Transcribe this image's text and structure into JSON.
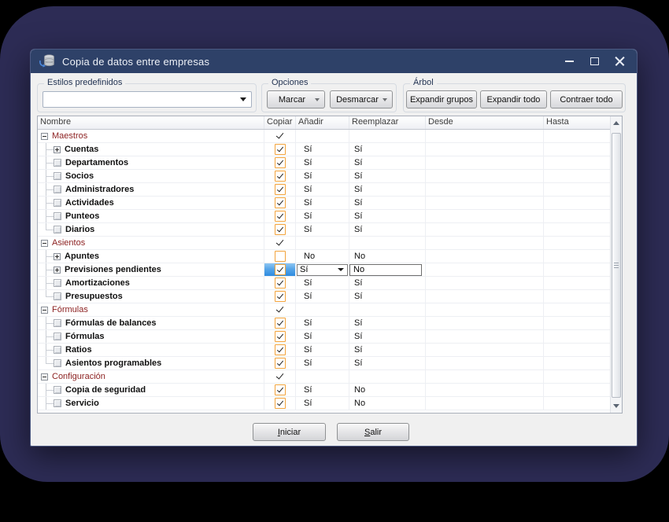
{
  "window": {
    "title": "Copia de datos entre empresas"
  },
  "toolbar": {
    "styles": {
      "label": "Estilos predefinidos",
      "combo_value": ""
    },
    "options": {
      "label": "Opciones",
      "marcar": "Marcar",
      "desmarcar": "Desmarcar"
    },
    "arbol": {
      "label": "Árbol",
      "expand_groups": "Expandir grupos",
      "expand_all": "Expandir todo",
      "collapse_all": "Contraer todo"
    }
  },
  "table": {
    "columns": [
      "Nombre",
      "Copiar",
      "Añadir",
      "Reemplazar",
      "Desde",
      "Hasta"
    ],
    "rows": [
      {
        "type": "group",
        "name": "Maestros",
        "copiar": "check"
      },
      {
        "type": "item",
        "name": "Cuentas",
        "expander": "plus",
        "copiar": "checked",
        "anadir": "Sí",
        "reemplazar": "Sí"
      },
      {
        "type": "item",
        "name": "Departamentos",
        "expander": "leaf",
        "copiar": "checked",
        "anadir": "Sí",
        "reemplazar": "Sí"
      },
      {
        "type": "item",
        "name": "Socios",
        "expander": "leaf",
        "copiar": "checked",
        "anadir": "Sí",
        "reemplazar": "Sí"
      },
      {
        "type": "item",
        "name": "Administradores",
        "expander": "leaf",
        "copiar": "checked",
        "anadir": "Sí",
        "reemplazar": "Sí"
      },
      {
        "type": "item",
        "name": "Actividades",
        "expander": "leaf",
        "copiar": "checked",
        "anadir": "Sí",
        "reemplazar": "Sí"
      },
      {
        "type": "item",
        "name": "Punteos",
        "expander": "leaf",
        "copiar": "checked",
        "anadir": "Sí",
        "reemplazar": "Sí"
      },
      {
        "type": "item",
        "name": "Diarios",
        "expander": "leaf",
        "last": true,
        "copiar": "checked",
        "anadir": "Sí",
        "reemplazar": "Sí"
      },
      {
        "type": "group",
        "name": "Asientos",
        "copiar": "check"
      },
      {
        "type": "item",
        "name": "Apuntes",
        "expander": "plus",
        "copiar": "unchecked",
        "anadir": "No",
        "reemplazar": "No"
      },
      {
        "type": "item",
        "name": "Previsiones pendientes",
        "expander": "plus",
        "copiar": "checked",
        "selected": true,
        "anadir": "Sí",
        "reemplazar": "No"
      },
      {
        "type": "item",
        "name": "Amortizaciones",
        "expander": "leaf",
        "copiar": "checked",
        "anadir": "Sí",
        "reemplazar": "Sí"
      },
      {
        "type": "item",
        "name": "Presupuestos",
        "expander": "leaf",
        "last": true,
        "copiar": "checked",
        "anadir": "Sí",
        "reemplazar": "Sí"
      },
      {
        "type": "group",
        "name": "Fórmulas",
        "copiar": "check"
      },
      {
        "type": "item",
        "name": "Fórmulas de balances",
        "expander": "leaf",
        "copiar": "checked",
        "anadir": "Sí",
        "reemplazar": "Sí"
      },
      {
        "type": "item",
        "name": "Fórmulas",
        "expander": "leaf",
        "copiar": "checked",
        "anadir": "Sí",
        "reemplazar": "Sí"
      },
      {
        "type": "item",
        "name": "Ratios",
        "expander": "leaf",
        "copiar": "checked",
        "anadir": "Sí",
        "reemplazar": "Sí"
      },
      {
        "type": "item",
        "name": "Asientos programables",
        "expander": "leaf",
        "last": true,
        "copiar": "checked",
        "anadir": "Sí",
        "reemplazar": "Sí"
      },
      {
        "type": "group",
        "name": "Configuración",
        "copiar": "check"
      },
      {
        "type": "item",
        "name": "Copia de seguridad",
        "expander": "leaf",
        "copiar": "checked",
        "anadir": "Sí",
        "reemplazar": "No"
      },
      {
        "type": "item",
        "name": "Servicio",
        "expander": "leaf",
        "copiar": "checked",
        "anadir": "Sí",
        "reemplazar": "No"
      }
    ]
  },
  "footer": {
    "iniciar": "Iniciar",
    "salir": "Salir"
  },
  "colors": {
    "titlebar": "#2e4168",
    "backdrop": "#2d2c55",
    "checkbox_orange": "#f2a33c",
    "selected_blue": "#2f8ce0",
    "group_text_red": "#8b1f1f"
  }
}
